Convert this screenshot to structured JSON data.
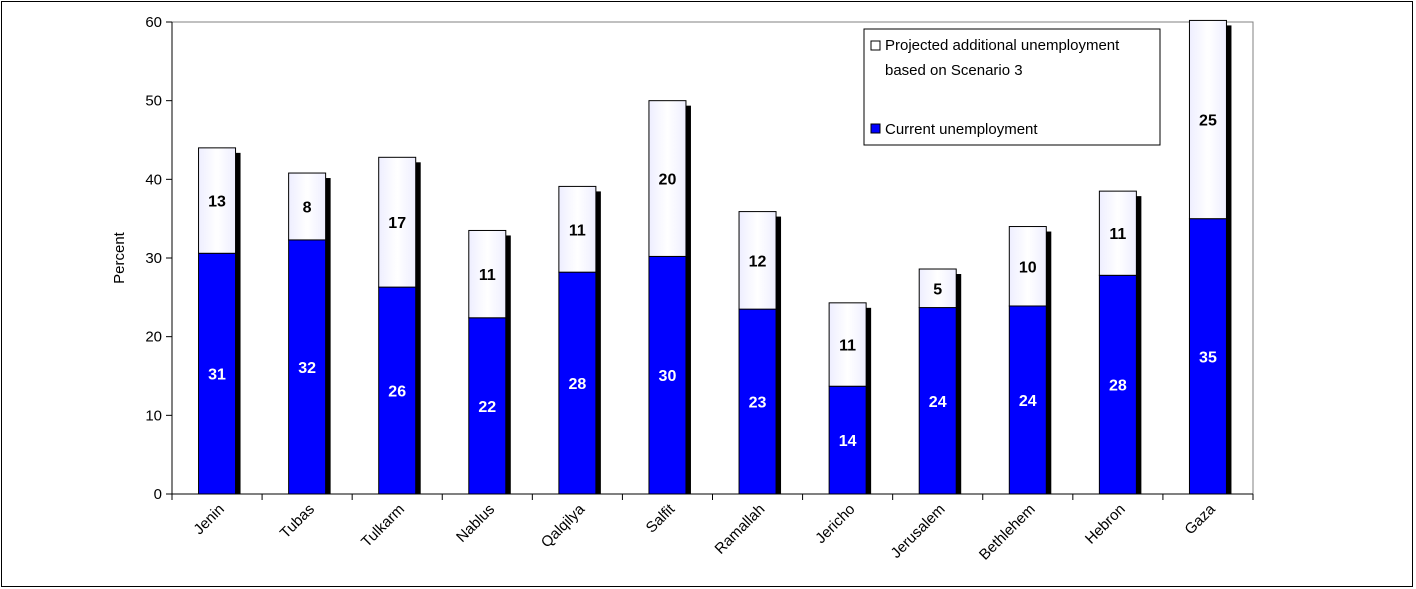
{
  "chart_data": {
    "type": "bar",
    "stacked": true,
    "ylabel": "Percent",
    "xlabel": "",
    "ylim": [
      0,
      60
    ],
    "yticks": [
      0,
      10,
      20,
      30,
      40,
      50,
      60
    ],
    "grid": false,
    "legend_position": "top-right",
    "categories": [
      "Jenin",
      "Tubas",
      "Tulkarm",
      "Nablus",
      "Qalqilya",
      "Salfit",
      "Ramallah",
      "Jericho",
      "Jerusalem",
      "Bethlehem",
      "Hebron",
      "Gaza"
    ],
    "series": [
      {
        "name": "Current unemployment",
        "color": "#0000ff",
        "label_color": "#ffffff",
        "values": [
          30.6,
          32.3,
          26.3,
          22.4,
          28.2,
          30.2,
          23.5,
          13.7,
          23.7,
          23.9,
          27.8,
          35.0
        ],
        "labels": [
          "31",
          "32",
          "26",
          "22",
          "28",
          "30",
          "23",
          "14",
          "24",
          "24",
          "28",
          "35"
        ]
      },
      {
        "name": "Projected additional unemployment based on Scenario 3",
        "color": "#ffffff",
        "label_color": "#000000",
        "values": [
          13.4,
          8.5,
          16.5,
          11.1,
          10.9,
          19.8,
          12.4,
          10.6,
          4.9,
          10.1,
          10.7,
          25.2
        ],
        "labels": [
          "13",
          "8",
          "17",
          "11",
          "11",
          "20",
          "12",
          "11",
          "5",
          "10",
          "11",
          "25"
        ]
      }
    ],
    "legend": {
      "line1": "Projected additional unemployment",
      "line2": "based on Scenario 3",
      "line3": "Current unemployment"
    }
  }
}
